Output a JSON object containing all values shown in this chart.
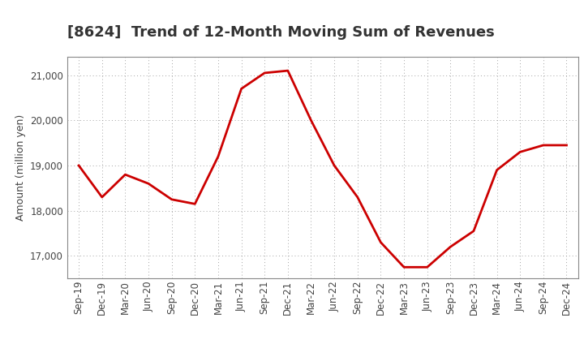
{
  "title": "[8624]  Trend of 12-Month Moving Sum of Revenues",
  "ylabel": "Amount (million yen)",
  "line_color": "#cc0000",
  "line_width": 2.0,
  "background_color": "#ffffff",
  "grid_color": "#999999",
  "ylim": [
    16500,
    21400
  ],
  "yticks": [
    17000,
    18000,
    19000,
    20000,
    21000
  ],
  "x_labels": [
    "Sep-19",
    "Dec-19",
    "Mar-20",
    "Jun-20",
    "Sep-20",
    "Dec-20",
    "Mar-21",
    "Jun-21",
    "Sep-21",
    "Dec-21",
    "Mar-22",
    "Jun-22",
    "Sep-22",
    "Dec-22",
    "Mar-23",
    "Jun-23",
    "Sep-23",
    "Dec-23",
    "Mar-24",
    "Jun-24",
    "Sep-24",
    "Dec-24"
  ],
  "values": [
    19000,
    18300,
    18800,
    18600,
    18250,
    18150,
    19200,
    20700,
    21050,
    21100,
    20000,
    19000,
    18300,
    17300,
    16750,
    16750,
    17200,
    17550,
    18900,
    19300,
    19450,
    19450
  ],
  "title_fontsize": 13,
  "ylabel_fontsize": 9,
  "tick_fontsize": 8.5
}
